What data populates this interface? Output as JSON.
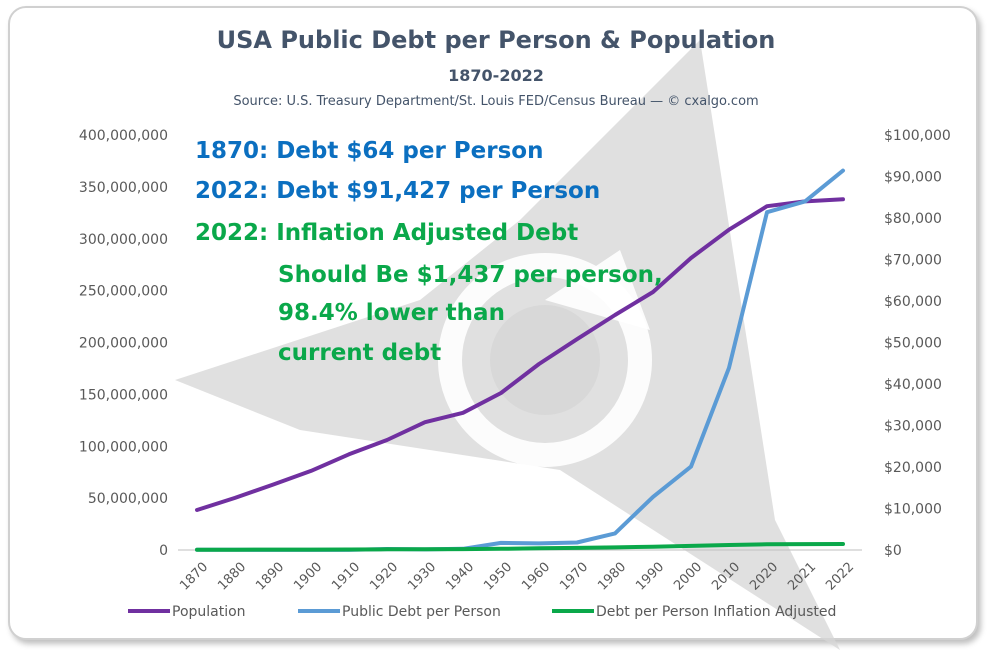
{
  "chart_data": {
    "type": "line",
    "title": "USA Public Debt per Person & Population",
    "subtitle": "1870-2022",
    "source": "Source: U.S. Treasury Department/St. Louis FED/Census Bureau — © cxalgo.com",
    "categories": [
      "1870",
      "1880",
      "1890",
      "1900",
      "1910",
      "1920",
      "1930",
      "1940",
      "1950",
      "1960",
      "1970",
      "1980",
      "1990",
      "2000",
      "2010",
      "2020",
      "2021",
      "2022"
    ],
    "y_left": {
      "min": 0,
      "max": 400000000,
      "step": 50000000,
      "tick_labels": [
        "0",
        "50,000,000",
        "100,000,000",
        "150,000,000",
        "200,000,000",
        "250,000,000",
        "300,000,000",
        "350,000,000",
        "400,000,000"
      ]
    },
    "y_right": {
      "min": 0,
      "max": 100000,
      "step": 10000,
      "tick_labels": [
        "$0",
        "$10,000",
        "$20,000",
        "$30,000",
        "$40,000",
        "$50,000",
        "$60,000",
        "$70,000",
        "$80,000",
        "$90,000",
        "$100,000"
      ]
    },
    "series": [
      {
        "name": "Population",
        "axis": "left",
        "color": "#7030a0",
        "values": [
          38600000,
          50200000,
          63000000,
          76200000,
          92200000,
          106000000,
          123200000,
          132200000,
          151300000,
          179300000,
          203200000,
          226500000,
          248700000,
          281400000,
          308700000,
          331400000,
          336000000,
          338000000
        ]
      },
      {
        "name": "Public Debt per Person",
        "axis": "right",
        "color": "#5b9bd5",
        "values": [
          64,
          50,
          30,
          20,
          30,
          250,
          150,
          300,
          1700,
          1600,
          1800,
          4000,
          12800,
          20100,
          43900,
          81400,
          84000,
          91427
        ]
      },
      {
        "name": "Debt per Person Inflation Adjusted",
        "axis": "right",
        "color": "#0aa84a",
        "values": [
          64,
          80,
          90,
          100,
          120,
          160,
          200,
          220,
          300,
          400,
          500,
          620,
          800,
          1000,
          1200,
          1380,
          1410,
          1437
        ]
      }
    ],
    "legend_position": "bottom",
    "grid": false,
    "annotations": [
      {
        "text": "1870: Debt $64 per Person",
        "color": "#0b6fc0"
      },
      {
        "text": "2022: Debt $91,427 per Person",
        "color": "#0b6fc0"
      },
      {
        "text": "2022: Inflation Adjusted Debt",
        "color": "#0aa84a"
      },
      {
        "text": "Should Be $1,437 per person,",
        "color": "#0aa84a"
      },
      {
        "text": "98.4% lower than",
        "color": "#0aa84a"
      },
      {
        "text": "current debt",
        "color": "#0aa84a"
      }
    ]
  }
}
